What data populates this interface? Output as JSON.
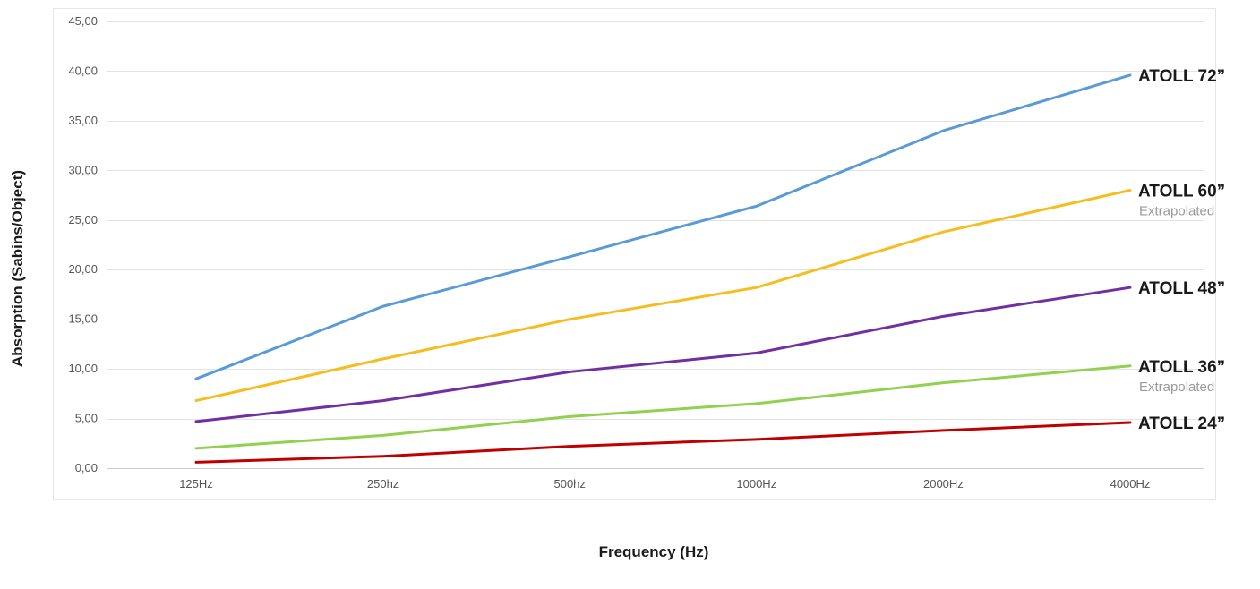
{
  "chart_data": {
    "type": "line",
    "xlabel": "Frequency (Hz)",
    "ylabel": "Absorption (Sabins/Object)",
    "categories": [
      "125Hz",
      "250hz",
      "500hz",
      "1000Hz",
      "2000Hz",
      "4000Hz"
    ],
    "y_ticks": [
      "0,00",
      "5,00",
      "10,00",
      "15,00",
      "20,00",
      "25,00",
      "30,00",
      "35,00",
      "40,00",
      "45,00"
    ],
    "ylim": [
      0,
      45
    ],
    "grid": true,
    "legend": "inline labels at right end of each line",
    "series": [
      {
        "name": "ATOLL 72”",
        "note": "",
        "color": "#5b9bd5",
        "values": [
          9.0,
          16.3,
          21.3,
          26.4,
          34.0,
          39.6
        ]
      },
      {
        "name": "ATOLL 60”",
        "note": "Extrapolated",
        "color": "#f5bd1f",
        "values": [
          6.8,
          11.0,
          15.0,
          18.2,
          23.8,
          28.0
        ]
      },
      {
        "name": "ATOLL 48”",
        "note": "",
        "color": "#7030a0",
        "values": [
          4.7,
          6.8,
          9.7,
          11.6,
          15.3,
          18.2
        ]
      },
      {
        "name": "ATOLL 36”",
        "note": "Extrapolated",
        "color": "#92d050",
        "values": [
          2.0,
          3.3,
          5.2,
          6.5,
          8.6,
          10.3
        ]
      },
      {
        "name": "ATOLL 24”",
        "note": "",
        "color": "#c00000",
        "values": [
          0.6,
          1.2,
          2.2,
          2.9,
          3.8,
          4.6
        ]
      }
    ]
  }
}
